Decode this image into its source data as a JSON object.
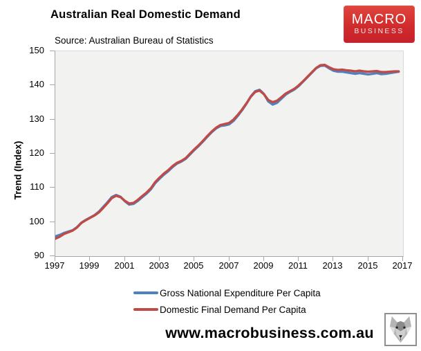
{
  "logo": {
    "line1": "MACRO",
    "line2": "BUSINESS",
    "bg_color": "#d02c2c"
  },
  "footer": {
    "website": "www.macrobusiness.com.au",
    "wolf_logo": "wolf-head-sketch"
  },
  "chart_data": {
    "type": "line",
    "title": "Australian Real Domestic Demand",
    "subtitle": "Source: Australian Bureau of Statistics",
    "xlabel": "",
    "ylabel": "Trend (Index)",
    "xlim": [
      1997,
      2017
    ],
    "ylim": [
      90,
      150
    ],
    "x_ticks": [
      1997,
      1999,
      2001,
      2003,
      2005,
      2007,
      2009,
      2011,
      2013,
      2015,
      2017
    ],
    "y_ticks": [
      90,
      100,
      110,
      120,
      130,
      140,
      150
    ],
    "grid": false,
    "plot_bg": "#f2f2f1",
    "axis_color": "#a6a6a6",
    "legend_position": "bottom",
    "x": [
      1997.0,
      1997.25,
      1997.5,
      1997.75,
      1998.0,
      1998.25,
      1998.5,
      1998.75,
      1999.0,
      1999.25,
      1999.5,
      1999.75,
      2000.0,
      2000.25,
      2000.5,
      2000.75,
      2001.0,
      2001.25,
      2001.5,
      2001.75,
      2002.0,
      2002.25,
      2002.5,
      2002.75,
      2003.0,
      2003.25,
      2003.5,
      2003.75,
      2004.0,
      2004.25,
      2004.5,
      2004.75,
      2005.0,
      2005.25,
      2005.5,
      2005.75,
      2006.0,
      2006.25,
      2006.5,
      2006.75,
      2007.0,
      2007.25,
      2007.5,
      2007.75,
      2008.0,
      2008.25,
      2008.5,
      2008.75,
      2009.0,
      2009.25,
      2009.5,
      2009.75,
      2010.0,
      2010.25,
      2010.5,
      2010.75,
      2011.0,
      2011.25,
      2011.5,
      2011.75,
      2012.0,
      2012.25,
      2012.5,
      2012.75,
      2013.0,
      2013.25,
      2013.5,
      2013.75,
      2014.0,
      2014.25,
      2014.5,
      2014.75,
      2015.0,
      2015.25,
      2015.5,
      2015.75,
      2016.0,
      2016.25,
      2016.5,
      2016.75
    ],
    "series": [
      {
        "name": "Gross National Expenditure Per Capita",
        "color": "#4f81bd",
        "values": [
          95.8,
          96.2,
          96.8,
          97.2,
          97.6,
          98.5,
          99.8,
          100.6,
          101.3,
          102.0,
          103.0,
          104.4,
          105.8,
          107.3,
          107.9,
          107.4,
          106.1,
          105.1,
          105.3,
          106.2,
          107.3,
          108.3,
          109.6,
          111.4,
          112.7,
          113.9,
          114.9,
          116.1,
          117.1,
          117.7,
          118.5,
          119.8,
          121.1,
          122.3,
          123.6,
          125.0,
          126.3,
          127.4,
          128.1,
          128.3,
          128.6,
          129.6,
          131.1,
          132.8,
          134.7,
          136.8,
          138.3,
          138.7,
          137.5,
          135.3,
          134.4,
          134.9,
          136.1,
          137.3,
          138.1,
          138.8,
          139.8,
          141.1,
          142.4,
          143.7,
          145.0,
          145.7,
          145.8,
          145.0,
          144.3,
          144.0,
          144.0,
          143.8,
          143.6,
          143.4,
          143.6,
          143.4,
          143.2,
          143.4,
          143.6,
          143.3,
          143.4,
          143.6,
          143.8,
          144.0
        ]
      },
      {
        "name": "Domestic Final Demand Per Capita",
        "color": "#be4b48",
        "values": [
          95.1,
          95.7,
          96.5,
          97.0,
          97.5,
          98.4,
          99.7,
          100.5,
          101.2,
          101.9,
          102.8,
          104.1,
          105.5,
          107.0,
          107.7,
          107.3,
          106.2,
          105.4,
          105.6,
          106.5,
          107.6,
          108.6,
          109.9,
          111.7,
          113.0,
          114.2,
          115.2,
          116.4,
          117.3,
          117.9,
          118.7,
          120.0,
          121.3,
          122.5,
          123.8,
          125.2,
          126.5,
          127.6,
          128.4,
          128.7,
          129.0,
          130.0,
          131.4,
          133.0,
          134.8,
          136.7,
          138.1,
          138.5,
          137.4,
          135.7,
          135.1,
          135.5,
          136.5,
          137.6,
          138.3,
          139.0,
          140.0,
          141.2,
          142.5,
          143.8,
          145.1,
          145.9,
          146.0,
          145.3,
          144.7,
          144.5,
          144.6,
          144.4,
          144.3,
          144.1,
          144.3,
          144.1,
          144.0,
          144.1,
          144.2,
          143.9,
          143.9,
          144.0,
          144.1,
          144.1
        ]
      }
    ]
  }
}
